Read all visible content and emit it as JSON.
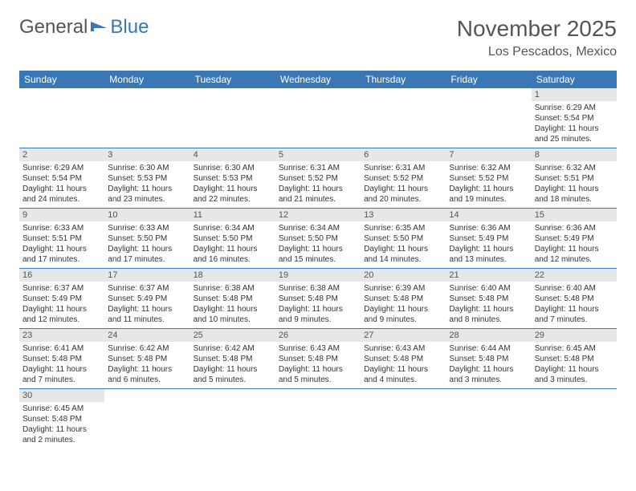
{
  "logo": {
    "text1": "General",
    "text2": "Blue"
  },
  "title": "November 2025",
  "location": "Los Pescados, Mexico",
  "colors": {
    "header_bg": "#3a78b5",
    "header_fg": "#ffffff",
    "daynum_bg": "#e7e7e7",
    "rule": "#3a78b5"
  },
  "weekdays": [
    "Sunday",
    "Monday",
    "Tuesday",
    "Wednesday",
    "Thursday",
    "Friday",
    "Saturday"
  ],
  "weeks": [
    [
      null,
      null,
      null,
      null,
      null,
      null,
      {
        "n": "1",
        "sr": "Sunrise: 6:29 AM",
        "ss": "Sunset: 5:54 PM",
        "dl": "Daylight: 11 hours and 25 minutes."
      }
    ],
    [
      {
        "n": "2",
        "sr": "Sunrise: 6:29 AM",
        "ss": "Sunset: 5:54 PM",
        "dl": "Daylight: 11 hours and 24 minutes."
      },
      {
        "n": "3",
        "sr": "Sunrise: 6:30 AM",
        "ss": "Sunset: 5:53 PM",
        "dl": "Daylight: 11 hours and 23 minutes."
      },
      {
        "n": "4",
        "sr": "Sunrise: 6:30 AM",
        "ss": "Sunset: 5:53 PM",
        "dl": "Daylight: 11 hours and 22 minutes."
      },
      {
        "n": "5",
        "sr": "Sunrise: 6:31 AM",
        "ss": "Sunset: 5:52 PM",
        "dl": "Daylight: 11 hours and 21 minutes."
      },
      {
        "n": "6",
        "sr": "Sunrise: 6:31 AM",
        "ss": "Sunset: 5:52 PM",
        "dl": "Daylight: 11 hours and 20 minutes."
      },
      {
        "n": "7",
        "sr": "Sunrise: 6:32 AM",
        "ss": "Sunset: 5:52 PM",
        "dl": "Daylight: 11 hours and 19 minutes."
      },
      {
        "n": "8",
        "sr": "Sunrise: 6:32 AM",
        "ss": "Sunset: 5:51 PM",
        "dl": "Daylight: 11 hours and 18 minutes."
      }
    ],
    [
      {
        "n": "9",
        "sr": "Sunrise: 6:33 AM",
        "ss": "Sunset: 5:51 PM",
        "dl": "Daylight: 11 hours and 17 minutes."
      },
      {
        "n": "10",
        "sr": "Sunrise: 6:33 AM",
        "ss": "Sunset: 5:50 PM",
        "dl": "Daylight: 11 hours and 17 minutes."
      },
      {
        "n": "11",
        "sr": "Sunrise: 6:34 AM",
        "ss": "Sunset: 5:50 PM",
        "dl": "Daylight: 11 hours and 16 minutes."
      },
      {
        "n": "12",
        "sr": "Sunrise: 6:34 AM",
        "ss": "Sunset: 5:50 PM",
        "dl": "Daylight: 11 hours and 15 minutes."
      },
      {
        "n": "13",
        "sr": "Sunrise: 6:35 AM",
        "ss": "Sunset: 5:50 PM",
        "dl": "Daylight: 11 hours and 14 minutes."
      },
      {
        "n": "14",
        "sr": "Sunrise: 6:36 AM",
        "ss": "Sunset: 5:49 PM",
        "dl": "Daylight: 11 hours and 13 minutes."
      },
      {
        "n": "15",
        "sr": "Sunrise: 6:36 AM",
        "ss": "Sunset: 5:49 PM",
        "dl": "Daylight: 11 hours and 12 minutes."
      }
    ],
    [
      {
        "n": "16",
        "sr": "Sunrise: 6:37 AM",
        "ss": "Sunset: 5:49 PM",
        "dl": "Daylight: 11 hours and 12 minutes."
      },
      {
        "n": "17",
        "sr": "Sunrise: 6:37 AM",
        "ss": "Sunset: 5:49 PM",
        "dl": "Daylight: 11 hours and 11 minutes."
      },
      {
        "n": "18",
        "sr": "Sunrise: 6:38 AM",
        "ss": "Sunset: 5:48 PM",
        "dl": "Daylight: 11 hours and 10 minutes."
      },
      {
        "n": "19",
        "sr": "Sunrise: 6:38 AM",
        "ss": "Sunset: 5:48 PM",
        "dl": "Daylight: 11 hours and 9 minutes."
      },
      {
        "n": "20",
        "sr": "Sunrise: 6:39 AM",
        "ss": "Sunset: 5:48 PM",
        "dl": "Daylight: 11 hours and 9 minutes."
      },
      {
        "n": "21",
        "sr": "Sunrise: 6:40 AM",
        "ss": "Sunset: 5:48 PM",
        "dl": "Daylight: 11 hours and 8 minutes."
      },
      {
        "n": "22",
        "sr": "Sunrise: 6:40 AM",
        "ss": "Sunset: 5:48 PM",
        "dl": "Daylight: 11 hours and 7 minutes."
      }
    ],
    [
      {
        "n": "23",
        "sr": "Sunrise: 6:41 AM",
        "ss": "Sunset: 5:48 PM",
        "dl": "Daylight: 11 hours and 7 minutes."
      },
      {
        "n": "24",
        "sr": "Sunrise: 6:42 AM",
        "ss": "Sunset: 5:48 PM",
        "dl": "Daylight: 11 hours and 6 minutes."
      },
      {
        "n": "25",
        "sr": "Sunrise: 6:42 AM",
        "ss": "Sunset: 5:48 PM",
        "dl": "Daylight: 11 hours and 5 minutes."
      },
      {
        "n": "26",
        "sr": "Sunrise: 6:43 AM",
        "ss": "Sunset: 5:48 PM",
        "dl": "Daylight: 11 hours and 5 minutes."
      },
      {
        "n": "27",
        "sr": "Sunrise: 6:43 AM",
        "ss": "Sunset: 5:48 PM",
        "dl": "Daylight: 11 hours and 4 minutes."
      },
      {
        "n": "28",
        "sr": "Sunrise: 6:44 AM",
        "ss": "Sunset: 5:48 PM",
        "dl": "Daylight: 11 hours and 3 minutes."
      },
      {
        "n": "29",
        "sr": "Sunrise: 6:45 AM",
        "ss": "Sunset: 5:48 PM",
        "dl": "Daylight: 11 hours and 3 minutes."
      }
    ],
    [
      {
        "n": "30",
        "sr": "Sunrise: 6:45 AM",
        "ss": "Sunset: 5:48 PM",
        "dl": "Daylight: 11 hours and 2 minutes."
      },
      null,
      null,
      null,
      null,
      null,
      null
    ]
  ]
}
